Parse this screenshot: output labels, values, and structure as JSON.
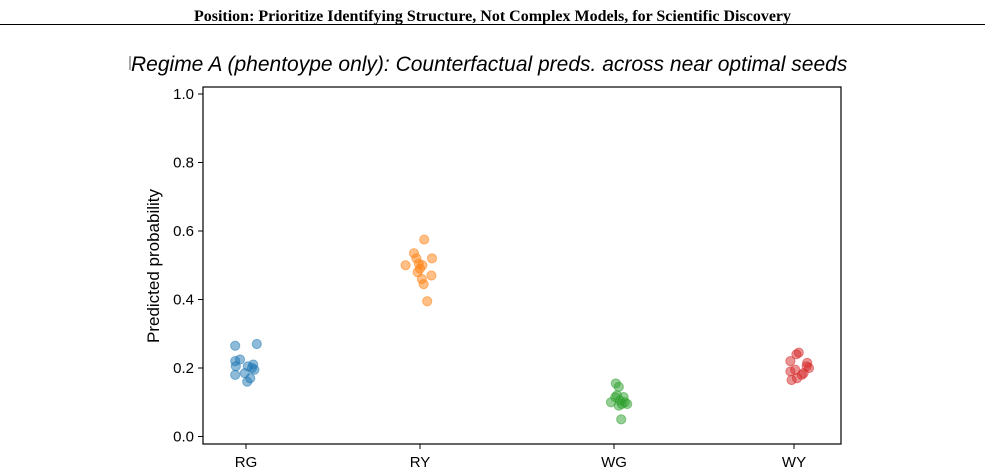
{
  "header": {
    "running_title": "Position: Prioritize Identifying Structure, Not Complex Models, for Scientific Discovery"
  },
  "chart_data": {
    "type": "scatter",
    "title": "Regime A (phentoype only): Counterfactual preds. across near optimal seeds",
    "xlabel": "",
    "ylabel": "Predicted probability",
    "ylim": [
      0.0,
      1.0
    ],
    "yticks": [
      0.0,
      0.2,
      0.4,
      0.6,
      0.8,
      1.0
    ],
    "categories": [
      "RG",
      "RY",
      "WG",
      "WY"
    ],
    "grid": false,
    "legend": "none",
    "series": [
      {
        "category": "RG",
        "color": "#1f77b4",
        "points": [
          {
            "x": -0.18,
            "y": 0.265
          },
          {
            "x": 0.18,
            "y": 0.27
          },
          {
            "x": -0.18,
            "y": 0.22
          },
          {
            "x": -0.1,
            "y": 0.225
          },
          {
            "x": -0.17,
            "y": 0.205
          },
          {
            "x": 0.12,
            "y": 0.21
          },
          {
            "x": 0.1,
            "y": 0.2
          },
          {
            "x": 0.03,
            "y": 0.205
          },
          {
            "x": -0.02,
            "y": 0.185
          },
          {
            "x": -0.18,
            "y": 0.18
          },
          {
            "x": 0.07,
            "y": 0.17
          },
          {
            "x": 0.02,
            "y": 0.16
          },
          {
            "x": 0.14,
            "y": 0.195
          }
        ]
      },
      {
        "category": "RY",
        "color": "#ff7f0e",
        "points": [
          {
            "x": -0.1,
            "y": 0.535
          },
          {
            "x": -0.06,
            "y": 0.52
          },
          {
            "x": 0.07,
            "y": 0.575
          },
          {
            "x": -0.02,
            "y": 0.505
          },
          {
            "x": 0.2,
            "y": 0.52
          },
          {
            "x": -0.24,
            "y": 0.5
          },
          {
            "x": 0.04,
            "y": 0.5
          },
          {
            "x": 0.0,
            "y": 0.49
          },
          {
            "x": 0.19,
            "y": 0.47
          },
          {
            "x": 0.03,
            "y": 0.46
          },
          {
            "x": 0.06,
            "y": 0.445
          },
          {
            "x": -0.04,
            "y": 0.48
          },
          {
            "x": 0.12,
            "y": 0.395
          }
        ]
      },
      {
        "category": "WG",
        "color": "#2ca02c",
        "points": [
          {
            "x": 0.03,
            "y": 0.155
          },
          {
            "x": 0.08,
            "y": 0.145
          },
          {
            "x": 0.05,
            "y": 0.12
          },
          {
            "x": 0.02,
            "y": 0.115
          },
          {
            "x": 0.1,
            "y": 0.105
          },
          {
            "x": -0.05,
            "y": 0.1
          },
          {
            "x": 0.18,
            "y": 0.1
          },
          {
            "x": 0.13,
            "y": 0.095
          },
          {
            "x": 0.22,
            "y": 0.095
          },
          {
            "x": 0.08,
            "y": 0.09
          },
          {
            "x": 0.16,
            "y": 0.115
          },
          {
            "x": 0.12,
            "y": 0.05
          }
        ]
      },
      {
        "category": "WY",
        "color": "#d62728",
        "points": [
          {
            "x": 0.08,
            "y": 0.245
          },
          {
            "x": 0.04,
            "y": 0.24
          },
          {
            "x": -0.06,
            "y": 0.22
          },
          {
            "x": 0.22,
            "y": 0.215
          },
          {
            "x": 0.25,
            "y": 0.2
          },
          {
            "x": 0.21,
            "y": 0.205
          },
          {
            "x": -0.06,
            "y": 0.19
          },
          {
            "x": 0.02,
            "y": 0.195
          },
          {
            "x": 0.13,
            "y": 0.18
          },
          {
            "x": 0.16,
            "y": 0.185
          },
          {
            "x": -0.04,
            "y": 0.165
          },
          {
            "x": 0.05,
            "y": 0.17
          }
        ]
      }
    ]
  }
}
